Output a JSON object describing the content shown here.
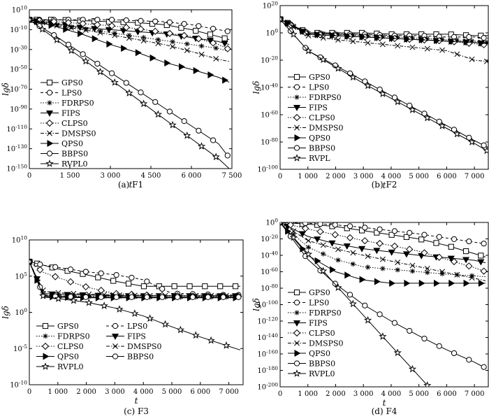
{
  "chart_data": [
    {
      "type": "line",
      "caption": "(a) F1",
      "xlabel": "t",
      "ylabel": "lgδ",
      "xlim": [
        0,
        7500
      ],
      "ylim": [
        -150,
        10
      ],
      "y_scale": "log",
      "x_ticks": [
        "0",
        "1 500",
        "3 000",
        "4 500",
        "6 000",
        "7 500"
      ],
      "y_ticks": [
        "10^10",
        "10^-10",
        "10^-30",
        "10^-50",
        "10^-70",
        "10^-90",
        "10^-110",
        "10^-130",
        "10^-150"
      ],
      "legend_placement": "center-left",
      "series": [
        {
          "name": "GPS0",
          "marker": "square",
          "dash": "solid",
          "x": [
            0,
            1000,
            2000,
            3000,
            4000,
            5000,
            6000,
            7000,
            7400
          ],
          "y": [
            0,
            0,
            -1,
            -2,
            -3,
            -5,
            -10,
            -17,
            -20
          ]
        },
        {
          "name": "LPS0",
          "marker": "circle",
          "dash": "dashed",
          "x": [
            0,
            1000,
            2000,
            3000,
            4000,
            5000,
            6000,
            7000,
            7400
          ],
          "y": [
            0,
            0,
            0,
            0,
            -1,
            -2,
            -5,
            -10,
            -12
          ]
        },
        {
          "name": "FDRPS0",
          "marker": "asterisk",
          "dash": "dotted",
          "x": [
            0,
            1000,
            2000,
            3000,
            4000,
            5000,
            6000,
            7000,
            7400
          ],
          "y": [
            0,
            -5,
            -9,
            -13,
            -17,
            -21,
            -25,
            -29,
            -32
          ]
        },
        {
          "name": "FIPS",
          "marker": "tri-down",
          "dash": "solid",
          "x": [
            0,
            1000,
            2000,
            3000,
            4000,
            5000,
            6000,
            7000,
            7400
          ],
          "y": [
            0,
            -4,
            -8,
            -10,
            -12,
            -14,
            -18,
            -22,
            -25
          ]
        },
        {
          "name": "CLPS0",
          "marker": "diamond",
          "dash": "dotted",
          "x": [
            0,
            1000,
            2000,
            3000,
            4000,
            5000,
            6000,
            7000,
            7400
          ],
          "y": [
            0,
            -2,
            -4,
            -6,
            -9,
            -13,
            -17,
            -25,
            -30
          ]
        },
        {
          "name": "DMSPS0",
          "marker": "x",
          "dash": "dashdot",
          "x": [
            0,
            1000,
            2000,
            3000,
            4000,
            5000,
            6000,
            7000,
            7400
          ],
          "y": [
            0,
            -6,
            -10,
            -15,
            -20,
            -25,
            -32,
            -40,
            -42
          ]
        },
        {
          "name": "QPS0",
          "marker": "tri-right",
          "dash": "solid",
          "x": [
            0,
            1000,
            2000,
            3000,
            4000,
            5000,
            6000,
            7000,
            7400
          ],
          "y": [
            0,
            -7,
            -15,
            -25,
            -33,
            -43,
            -50,
            -58,
            -63
          ]
        },
        {
          "name": "BBPS0",
          "marker": "circle",
          "dash": "solid",
          "x": [
            0,
            1000,
            2000,
            3000,
            4000,
            5000,
            6000,
            7000,
            7400
          ],
          "y": [
            0,
            -17,
            -35,
            -53,
            -71,
            -89,
            -107,
            -125,
            -139
          ]
        },
        {
          "name": "RVPL0",
          "marker": "star",
          "dash": "solid",
          "x": [
            0,
            1000,
            2000,
            3000,
            4000,
            5000,
            6000,
            7000,
            7400
          ],
          "y": [
            0,
            -20,
            -40,
            -60,
            -80,
            -100,
            -120,
            -140,
            -150
          ]
        }
      ]
    },
    {
      "type": "line",
      "caption": "(b) F2",
      "xlabel": "t",
      "ylabel": "lgδ",
      "xlim": [
        0,
        7500
      ],
      "ylim": [
        -100,
        20
      ],
      "y_scale": "log",
      "x_ticks": [
        "0",
        "1 000",
        "2 000",
        "3 000",
        "4 000",
        "5 000",
        "6 000",
        "7 000"
      ],
      "y_ticks": [
        "10^20",
        "10^0",
        "10^-20",
        "10^-40",
        "10^-60",
        "10^-80",
        "10^-100"
      ],
      "legend_placement": "center-left",
      "series": [
        {
          "name": "GPS0",
          "marker": "square",
          "dash": "solid",
          "x": [
            0,
            1000,
            2000,
            3000,
            4000,
            5000,
            6000,
            7000,
            7500
          ],
          "y": [
            10,
            0,
            0,
            0,
            -1,
            -1,
            -1,
            -2,
            -2
          ]
        },
        {
          "name": "LPS0",
          "marker": "circle",
          "dash": "dashed",
          "x": [
            0,
            1000,
            2000,
            3000,
            4000,
            5000,
            6000,
            7000,
            7500
          ],
          "y": [
            10,
            0,
            -1,
            -1,
            -2,
            -2,
            -3,
            -3,
            -4
          ]
        },
        {
          "name": "FDRPS0",
          "marker": "asterisk",
          "dash": "dotted",
          "x": [
            0,
            1000,
            2000,
            3000,
            4000,
            5000,
            6000,
            7000,
            7500
          ],
          "y": [
            10,
            0,
            -1,
            -2,
            -3,
            -4,
            -5,
            -6,
            -7
          ]
        },
        {
          "name": "FIPS",
          "marker": "tri-down",
          "dash": "solid",
          "x": [
            0,
            1000,
            2000,
            3000,
            4000,
            5000,
            6000,
            7000,
            7500
          ],
          "y": [
            10,
            -1,
            -2,
            -3,
            -4,
            -5,
            -6,
            -7,
            -8
          ]
        },
        {
          "name": "CLPS0",
          "marker": "diamond",
          "dash": "dotted",
          "x": [
            0,
            1000,
            2000,
            3000,
            4000,
            5000,
            6000,
            7000,
            7500
          ],
          "y": [
            10,
            -1,
            -2,
            -3,
            -4,
            -5,
            -6,
            -8,
            -9
          ]
        },
        {
          "name": "DMSPS0",
          "marker": "x",
          "dash": "dashdot",
          "x": [
            0,
            1000,
            2000,
            3000,
            4000,
            5000,
            6000,
            7000,
            7500
          ],
          "y": [
            10,
            -2,
            -5,
            -7,
            -9,
            -11,
            -13,
            -20,
            -21
          ]
        },
        {
          "name": "QPS0",
          "marker": "tri-right",
          "dash": "solid",
          "x": [
            0,
            1000,
            2000,
            3000,
            4000,
            5000,
            6000,
            7000,
            7500
          ],
          "y": [
            10,
            -1,
            -2,
            -3,
            -4,
            -5,
            -6,
            -7,
            -8
          ]
        },
        {
          "name": "BBPS0",
          "marker": "circle",
          "dash": "solid",
          "x": [
            0,
            1000,
            2000,
            3000,
            4000,
            5000,
            6000,
            7000,
            7500
          ],
          "y": [
            10,
            -13,
            -24,
            -35,
            -46,
            -57,
            -68,
            -79,
            -84
          ]
        },
        {
          "name": "RVPL",
          "marker": "star",
          "dash": "solid",
          "x": [
            0,
            1000,
            2000,
            3000,
            4000,
            5000,
            6000,
            7000,
            7500
          ],
          "y": [
            10,
            -13,
            -25,
            -37,
            -48,
            -59,
            -70,
            -81,
            -87
          ]
        }
      ]
    },
    {
      "type": "line",
      "caption": "(c) F3",
      "xlabel": "t",
      "ylabel": "lgδ",
      "xlim": [
        0,
        7500
      ],
      "ylim": [
        -10,
        10
      ],
      "y_scale": "log",
      "x_ticks": [
        "0",
        "1 000",
        "2 000",
        "3 000",
        "4 000",
        "5 000",
        "6 000",
        "7 000"
      ],
      "y_ticks": [
        "10^10",
        "10^5",
        "10^0",
        "10^-5",
        "10^-10"
      ],
      "legend_placement": "bottom-left",
      "legend_columns": 2,
      "series": [
        {
          "name": "GPS0",
          "marker": "square",
          "dash": "solid",
          "x": [
            0,
            500,
            1000,
            2000,
            3000,
            4000,
            5000,
            6000,
            7000,
            7400
          ],
          "y": [
            7,
            6.5,
            6.0,
            5.2,
            4.3,
            3.6,
            3.6,
            3.6,
            3.6,
            3.6
          ]
        },
        {
          "name": "LPS0",
          "marker": "circle",
          "dash": "dashed",
          "x": [
            0,
            500,
            1000,
            2000,
            3000,
            4000,
            5000,
            6000,
            7000,
            7400
          ],
          "y": [
            7,
            6.5,
            6.2,
            5.6,
            5.2,
            4.5,
            2.6,
            2.5,
            2.4,
            2.4
          ]
        },
        {
          "name": "FDRPS0",
          "marker": "asterisk",
          "dash": "dotted",
          "x": [
            0,
            500,
            1000,
            2000,
            3000,
            4000,
            5000,
            6000,
            7000,
            7400
          ],
          "y": [
            7,
            2.4,
            2.3,
            2.2,
            2.2,
            2.1,
            2.1,
            2.1,
            2.1,
            2.1
          ]
        },
        {
          "name": "FIPS",
          "marker": "tri-down",
          "dash": "solid",
          "x": [
            0,
            500,
            1000,
            2000,
            3000,
            4000,
            5000,
            6000,
            7000,
            7400
          ],
          "y": [
            7,
            2.6,
            2.5,
            2.4,
            2.3,
            2.3,
            2.3,
            2.3,
            2.3,
            2.3
          ]
        },
        {
          "name": "CLPS0",
          "marker": "diamond",
          "dash": "dotted",
          "x": [
            0,
            500,
            1000,
            2000,
            3000,
            4000,
            5000,
            6000,
            7000,
            7400
          ],
          "y": [
            7,
            5.5,
            4.8,
            3.5,
            2.6,
            2.4,
            2.3,
            2.2,
            2.2,
            2.2
          ]
        },
        {
          "name": "DMSPS0",
          "marker": "x",
          "dash": "dashdot",
          "x": [
            0,
            500,
            1000,
            2000,
            3000,
            4000,
            5000,
            6000,
            7000,
            7400
          ],
          "y": [
            7,
            2.9,
            2.7,
            2.5,
            2.4,
            2.3,
            2.3,
            2.3,
            2.3,
            2.3
          ]
        },
        {
          "name": "QPS0",
          "marker": "tri-right",
          "dash": "solid",
          "x": [
            0,
            500,
            1000,
            2000,
            3000,
            4000,
            5000,
            6000,
            7000,
            7400
          ],
          "y": [
            7,
            2.2,
            2.1,
            2.0,
            2.0,
            2.0,
            2.0,
            2.0,
            2.0,
            2.0
          ]
        },
        {
          "name": "BBPS0",
          "marker": "circle",
          "dash": "solid",
          "x": [
            0,
            500,
            1000,
            2000,
            3000,
            4000,
            5000,
            6000,
            7000,
            7400
          ],
          "y": [
            7,
            2.3,
            2.2,
            2.1,
            2.1,
            2.1,
            2.1,
            2.1,
            2.1,
            2.1
          ]
        },
        {
          "name": "RVPL0",
          "marker": "star",
          "dash": "solid",
          "x": [
            0,
            500,
            1000,
            2000,
            3000,
            4000,
            5000,
            6000,
            7000,
            7400
          ],
          "y": [
            7,
            2.1,
            1.9,
            1.4,
            0.6,
            -0.5,
            -2.0,
            -3.4,
            -4.7,
            -5.2
          ]
        }
      ]
    },
    {
      "type": "line",
      "caption": "(d) F4",
      "xlabel": "t",
      "ylabel": "lgδ",
      "xlim": [
        0,
        7500
      ],
      "ylim": [
        -200,
        0
      ],
      "y_scale": "log",
      "x_ticks": [
        "0",
        "1 000",
        "2 000",
        "3 000",
        "4 000",
        "5 000",
        "6 000",
        "7 000"
      ],
      "y_ticks": [
        "10^0",
        "10^-20",
        "10^-40",
        "10^-60",
        "10^-80",
        "10^-100",
        "10^-120",
        "10^-140",
        "10^-160",
        "10^-180",
        "10^-200"
      ],
      "legend_placement": "center-left",
      "series": [
        {
          "name": "GPS0",
          "marker": "square",
          "dash": "solid",
          "x": [
            0,
            1000,
            2000,
            3000,
            4000,
            5000,
            6000,
            7000,
            7400
          ],
          "y": [
            0,
            -2,
            -5,
            -10,
            -15,
            -20,
            -28,
            -38,
            -42
          ]
        },
        {
          "name": "LPS0",
          "marker": "circle",
          "dash": "dashed",
          "x": [
            0,
            1000,
            2000,
            3000,
            4000,
            5000,
            6000,
            7000,
            7400
          ],
          "y": [
            0,
            -1,
            -3,
            -6,
            -10,
            -14,
            -19,
            -24,
            -26
          ]
        },
        {
          "name": "FDRPS0",
          "marker": "asterisk",
          "dash": "dotted",
          "x": [
            0,
            1000,
            2000,
            3000,
            4000,
            5000,
            6000,
            7000,
            7400
          ],
          "y": [
            0,
            -30,
            -45,
            -54,
            -57,
            -60,
            -63,
            -65,
            -66
          ]
        },
        {
          "name": "FIPS",
          "marker": "tri-down",
          "dash": "solid",
          "x": [
            0,
            1000,
            2000,
            3000,
            4000,
            5000,
            6000,
            7000,
            7400
          ],
          "y": [
            0,
            -17,
            -26,
            -32,
            -36,
            -40,
            -43,
            -46,
            -49
          ]
        },
        {
          "name": "CLPS0",
          "marker": "diamond",
          "dash": "dotted",
          "x": [
            0,
            1000,
            2000,
            3000,
            4000,
            5000,
            6000,
            7000,
            7400
          ],
          "y": [
            0,
            -8,
            -15,
            -22,
            -28,
            -35,
            -45,
            -55,
            -60
          ]
        },
        {
          "name": "DMSPS0",
          "marker": "x",
          "dash": "dashdot",
          "x": [
            0,
            1000,
            2000,
            3000,
            4000,
            5000,
            6000,
            7000,
            7400
          ],
          "y": [
            0,
            -22,
            -32,
            -40,
            -47,
            -54,
            -61,
            -68,
            -71
          ]
        },
        {
          "name": "QPS0",
          "marker": "tri-right",
          "dash": "solid",
          "x": [
            0,
            1000,
            2000,
            3000,
            4000,
            5000,
            6000,
            7000,
            7400
          ],
          "y": [
            0,
            -40,
            -60,
            -70,
            -74,
            -74,
            -74,
            -74,
            -74
          ]
        },
        {
          "name": "BBPS0",
          "marker": "circle",
          "dash": "solid",
          "x": [
            0,
            1000,
            2000,
            3000,
            4000,
            5000,
            6000,
            7000,
            7400
          ],
          "y": [
            0,
            -45,
            -75,
            -100,
            -120,
            -138,
            -155,
            -170,
            -177
          ]
        },
        {
          "name": "RVPL0",
          "marker": "star",
          "dash": "solid",
          "x": [
            0,
            1000,
            2000,
            3000,
            4000,
            5000,
            5350
          ],
          "y": [
            0,
            -38,
            -76,
            -113,
            -150,
            -187,
            -200
          ]
        }
      ]
    }
  ]
}
